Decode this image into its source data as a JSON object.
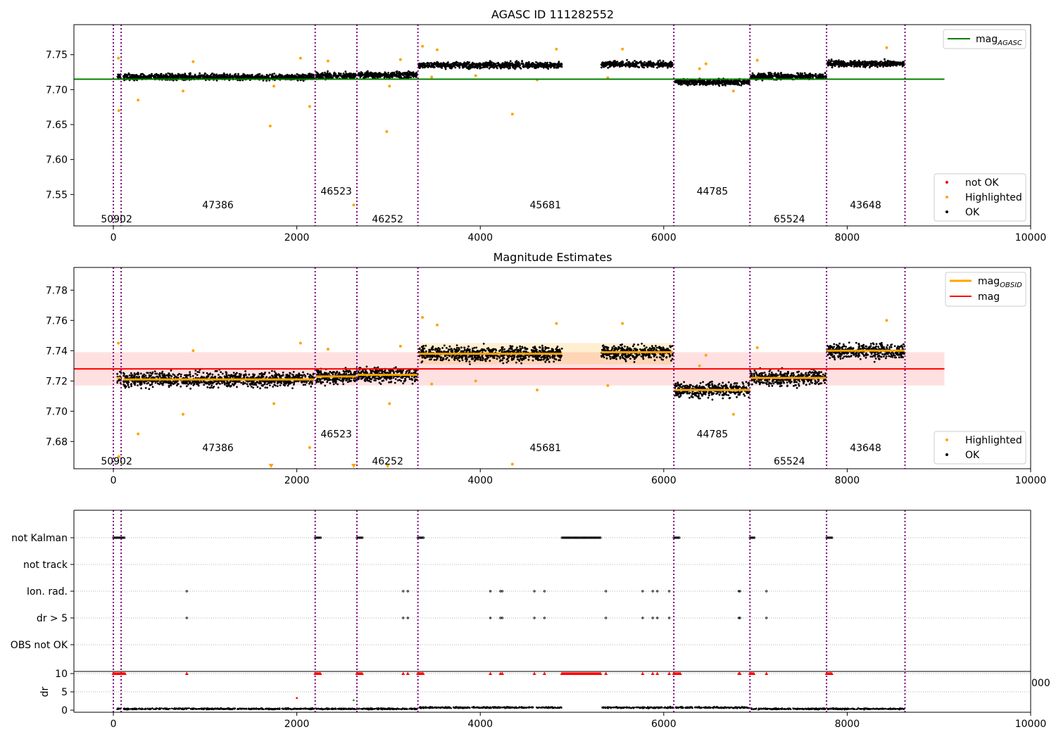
{
  "colors": {
    "agasc_line": "#008000",
    "obsid_mag": "#ffa500",
    "mag_line": "#ff0000",
    "band": "#ffcccc",
    "ok": "#000000",
    "highlighted": "#ffa500",
    "not_ok": "#ff0000",
    "obsid_boundary": "#800080",
    "grid": "#b0b0b0"
  },
  "chart_data": [
    {
      "type": "scatter",
      "title": "AGASC ID 111282552",
      "xlim": [
        -430,
        10000
      ],
      "ylim": [
        7.505,
        7.793
      ],
      "xticks": [
        0,
        2000,
        4000,
        6000,
        8000,
        10000
      ],
      "yticks": [
        7.55,
        7.6,
        7.65,
        7.7,
        7.75
      ],
      "ytick_labels": [
        "7.55",
        "7.60",
        "7.65",
        "7.70",
        "7.75"
      ],
      "mag_agasc": 7.715,
      "mag_agasc_range": [
        -430,
        9060
      ],
      "obsid_boundaries": [
        0,
        85,
        2200,
        2655,
        3320,
        6110,
        6940,
        7775,
        8630
      ],
      "obsid_labels": [
        {
          "text": "50902",
          "x": 35,
          "y": 7.515
        },
        {
          "text": "47386",
          "x": 1140,
          "y": 7.535
        },
        {
          "text": "46523",
          "x": 2430,
          "y": 7.555
        },
        {
          "text": "46252",
          "x": 2990,
          "y": 7.515
        },
        {
          "text": "45681",
          "x": 4710,
          "y": 7.535
        },
        {
          "text": "44785",
          "x": 6530,
          "y": 7.555
        },
        {
          "text": "65524",
          "x": 7370,
          "y": 7.515
        },
        {
          "text": "43648",
          "x": 8200,
          "y": 7.535
        }
      ],
      "segments": [
        {
          "start": 40,
          "end": 85,
          "mag": 7.722
        },
        {
          "start": 110,
          "end": 2190,
          "mag": 7.721
        },
        {
          "start": 2210,
          "end": 2650,
          "mag": 7.723
        },
        {
          "start": 2665,
          "end": 3315,
          "mag": 7.724
        },
        {
          "start": 3330,
          "end": 4890,
          "mag": 7.738
        },
        {
          "start": 5320,
          "end": 6100,
          "mag": 7.739
        },
        {
          "start": 6120,
          "end": 6935,
          "mag": 7.714
        },
        {
          "start": 6945,
          "end": 7770,
          "mag": 7.722
        },
        {
          "start": 7780,
          "end": 8625,
          "mag": 7.74
        }
      ],
      "highlighted_points": [
        [
          60,
          7.67
        ],
        [
          55,
          7.745
        ],
        [
          270,
          7.685
        ],
        [
          760,
          7.698
        ],
        [
          870,
          7.74
        ],
        [
          1710,
          7.648
        ],
        [
          1750,
          7.705
        ],
        [
          2040,
          7.745
        ],
        [
          2140,
          7.676
        ],
        [
          2340,
          7.741
        ],
        [
          2620,
          7.535
        ],
        [
          2980,
          7.64
        ],
        [
          3010,
          7.705
        ],
        [
          3130,
          7.743
        ],
        [
          3370,
          7.762
        ],
        [
          3470,
          7.718
        ],
        [
          3530,
          7.757
        ],
        [
          3950,
          7.72
        ],
        [
          4350,
          7.665
        ],
        [
          4620,
          7.714
        ],
        [
          4830,
          7.758
        ],
        [
          5390,
          7.717
        ],
        [
          5550,
          7.758
        ],
        [
          6390,
          7.73
        ],
        [
          6460,
          7.737
        ],
        [
          6760,
          7.698
        ],
        [
          7020,
          7.742
        ],
        [
          8430,
          7.76
        ]
      ],
      "legend_upper": {
        "position": "upper right",
        "entries": [
          "mag_AGASC"
        ]
      },
      "legend_lower": {
        "position": "lower right",
        "entries": [
          "not OK",
          "Highlighted",
          "OK"
        ]
      }
    },
    {
      "type": "scatter",
      "title": "Magnitude Estimates",
      "xlim": [
        -430,
        10000
      ],
      "ylim": [
        7.662,
        7.795
      ],
      "xticks": [
        0,
        2000,
        4000,
        6000,
        8000,
        10000
      ],
      "yticks": [
        7.68,
        7.7,
        7.72,
        7.74,
        7.76,
        7.78
      ],
      "ytick_labels": [
        "7.68",
        "7.70",
        "7.72",
        "7.74",
        "7.76",
        "7.78"
      ],
      "mag": 7.728,
      "mag_band": [
        7.717,
        7.739
      ],
      "line_range": [
        -430,
        9060
      ],
      "obsid_mag_bands": [
        [
          3330,
          6100,
          7.731,
          7.745
        ]
      ],
      "obsid_labels": [
        {
          "text": "50902",
          "x": 35,
          "y": 7.667
        },
        {
          "text": "47386",
          "x": 1140,
          "y": 7.676
        },
        {
          "text": "46523",
          "x": 2430,
          "y": 7.685
        },
        {
          "text": "46252",
          "x": 2990,
          "y": 7.667
        },
        {
          "text": "45681",
          "x": 4710,
          "y": 7.676
        },
        {
          "text": "44785",
          "x": 6530,
          "y": 7.685
        },
        {
          "text": "65524",
          "x": 7370,
          "y": 7.667
        },
        {
          "text": "43648",
          "x": 8200,
          "y": 7.676
        }
      ],
      "offscale_markers": [
        1720,
        2620,
        2990
      ],
      "legend_upper": {
        "position": "upper right",
        "entries": [
          "mag_OBSID",
          "mag"
        ]
      },
      "legend_lower": {
        "position": "lower right",
        "entries": [
          "Highlighted",
          "OK"
        ]
      }
    },
    {
      "type": "scatter",
      "xlim": [
        -430,
        10000
      ],
      "xticks": [
        0,
        2000,
        4000,
        6000,
        8000,
        10000
      ],
      "flag_rows": [
        "not Kalman",
        "not track",
        "Ion. rad.",
        "dr > 5",
        "OBS not OK"
      ],
      "not_kalman_ranges": [
        [
          0,
          130
        ],
        [
          2200,
          2260
        ],
        [
          2655,
          2715
        ],
        [
          3320,
          3380
        ],
        [
          4890,
          5320
        ],
        [
          6110,
          6180
        ],
        [
          6940,
          6990
        ],
        [
          7775,
          7840
        ]
      ],
      "ion_rad_x": [
        800,
        3160,
        3210,
        4110,
        4220,
        4240,
        4590,
        4700,
        5370,
        5770,
        5880,
        5930,
        6060,
        6820,
        6830,
        7120
      ],
      "dr_gt5_x": [
        800,
        3160,
        3210,
        4110,
        4220,
        4240,
        4590,
        4700,
        5370,
        5770,
        5880,
        5930,
        6060,
        6820,
        6830,
        7120
      ],
      "dr_yticks": [
        0,
        5,
        10
      ],
      "dr_ylabel": "dr",
      "dr_capped": 10,
      "dr_outliers": [
        [
          2000,
          3.3
        ],
        [
          2620,
          2.7
        ]
      ]
    }
  ],
  "labels": {
    "obsid_label_1": "50902",
    "obsid_label_2": "47386",
    "obsid_label_3": "46523",
    "obsid_label_4": "46252",
    "obsid_label_5": "45681",
    "obsid_label_6": "44785",
    "obsid_label_7": "65524",
    "obsid_label_8": "43648",
    "legend_mag_prefix": "mag",
    "legend_agasc_sub": "AGASC",
    "legend_obsid_sub": "OBSID",
    "legend_mag": "mag",
    "legend_not_ok": "not OK",
    "legend_highlighted": "Highlighted",
    "legend_ok": "OK",
    "clipped_tick": "000"
  }
}
